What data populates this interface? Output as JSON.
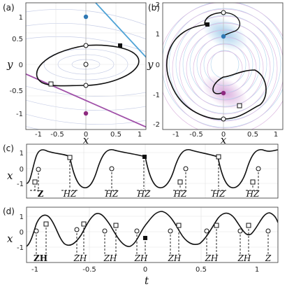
{
  "figure": {
    "panels": [
      {
        "label": "(a)",
        "xlabel": "x",
        "ylabel": "y",
        "xticks": [
          "-1",
          "-0.5",
          "0",
          "0.5",
          "1"
        ],
        "yticks": [
          "1",
          "0.5",
          "0",
          "-0.5",
          "-1"
        ]
      },
      {
        "label": "(b)",
        "xlabel": "x",
        "ylabel": "y",
        "xticks": [
          "-1",
          "-0.5",
          "0",
          "0.5",
          "1"
        ],
        "yticks": [
          "2",
          "1",
          "0",
          "-1",
          "-2"
        ]
      },
      {
        "label": "(c)",
        "ylabel": "x",
        "yticks": [
          "1",
          "0",
          "-1"
        ],
        "annotations": [
          "Z",
          "HZ",
          "HZ",
          "HZ",
          "HZ",
          "HZ",
          "HZ",
          "HZ"
        ]
      },
      {
        "label": "(d)",
        "ylabel": "x",
        "xlabel": "t",
        "yticks": [
          "1",
          "0",
          "-1"
        ],
        "xticks": [
          "-1",
          "-0.5",
          "0",
          "0.5",
          "1"
        ],
        "annotations": [
          "ZH",
          "ZH",
          "ZH",
          "ZH",
          "ZH",
          "ZH",
          "ZH",
          "Z"
        ]
      }
    ]
  },
  "chart_data": [
    {
      "type": "line",
      "panel": "a",
      "xlim": [
        -1.2,
        1.2
      ],
      "ylim": [
        -1.2,
        1.2
      ],
      "points": {
        "fixed_top": [
          0,
          1.0
        ],
        "fixed_bottom": [
          0,
          -0.95
        ],
        "open_circles": [
          [
            0,
            0.42
          ],
          [
            0,
            0.0
          ],
          [
            0,
            -0.38
          ]
        ],
        "filled_square": [
          0.75,
          0.4
        ],
        "open_square": [
          -0.78,
          -0.37
        ]
      },
      "lines": [
        {
          "color": "#4fa3d6",
          "slope": -1.1,
          "intercept": 1.2
        },
        {
          "color": "#a050a8",
          "slope": -0.5,
          "intercept": -0.78
        }
      ],
      "grid": true
    },
    {
      "type": "line",
      "panel": "b",
      "xlim": [
        -1.2,
        1.2
      ],
      "ylim": [
        -2,
        2
      ],
      "points": {
        "fixed_top": [
          0,
          1.05
        ],
        "fixed_bottom": [
          0,
          -0.95
        ],
        "open_circles": [
          [
            0,
            1.8
          ],
          [
            0,
            -1.8
          ]
        ],
        "filled_square": [
          -0.35,
          1.45
        ],
        "open_square": [
          0.37,
          -1.55
        ]
      },
      "grid": true
    },
    {
      "type": "line",
      "panel": "c",
      "ylim": [
        -1.2,
        1.2
      ],
      "series": [
        {
          "name": "",
          "waveform": "relaxation"
        }
      ]
    },
    {
      "type": "line",
      "panel": "d",
      "xlim": [
        -1.2,
        1.2
      ],
      "ylim": [
        -1.2,
        1.2
      ],
      "series": [
        {
          "name": "",
          "waveform": "oscillation"
        }
      ]
    }
  ]
}
